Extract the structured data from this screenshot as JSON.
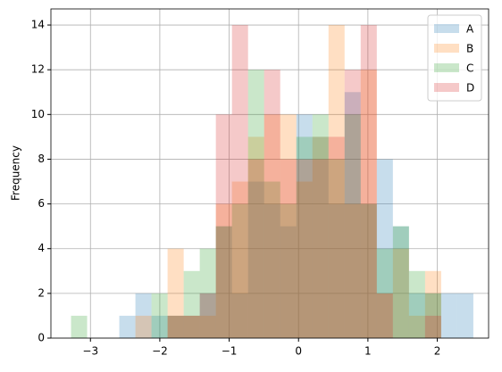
{
  "chart_data": {
    "type": "histogram",
    "ylabel": "Frequency",
    "bins": [
      -3.28,
      -3.048,
      -2.816,
      -2.584,
      -2.352,
      -2.12,
      -1.888,
      -1.656,
      -1.424,
      -1.192,
      -0.96,
      -0.728,
      -0.496,
      -0.264,
      -0.032,
      0.2,
      0.432,
      0.664,
      0.896,
      1.128,
      1.36,
      1.592,
      1.824,
      2.056,
      2.288,
      2.52
    ],
    "series": [
      {
        "name": "A",
        "color": "#1f77b4",
        "values": [
          0,
          0,
          0,
          1,
          2,
          1,
          1,
          1,
          2,
          5,
          2,
          7,
          6,
          5,
          10,
          9,
          6,
          11,
          6,
          8,
          5,
          2,
          2,
          2,
          2
        ]
      },
      {
        "name": "B",
        "color": "#ff7f0e",
        "values": [
          0,
          0,
          0,
          0,
          1,
          0,
          4,
          1,
          1,
          6,
          7,
          9,
          10,
          10,
          7,
          9,
          14,
          6,
          12,
          2,
          4,
          1,
          3,
          0,
          0
        ]
      },
      {
        "name": "C",
        "color": "#2ca02c",
        "values": [
          1,
          0,
          0,
          0,
          0,
          2,
          1,
          3,
          4,
          5,
          6,
          12,
          7,
          6,
          9,
          10,
          8,
          10,
          6,
          4,
          5,
          3,
          2,
          0,
          0
        ]
      },
      {
        "name": "D",
        "color": "#d62728",
        "values": [
          0,
          0,
          0,
          0,
          0,
          0,
          1,
          1,
          2,
          10,
          14,
          8,
          12,
          8,
          8,
          8,
          9,
          12,
          14,
          2,
          0,
          0,
          1,
          0,
          0
        ]
      }
    ],
    "opacity": 0.25,
    "xlim": [
      -3.57,
      2.74
    ],
    "ylim": [
      0,
      14.72
    ],
    "xticks": [
      {
        "value": -3,
        "label": "−3"
      },
      {
        "value": -2,
        "label": "−2"
      },
      {
        "value": -1,
        "label": "−1"
      },
      0,
      1,
      2
    ],
    "yticks": [
      0,
      2,
      4,
      6,
      8,
      10,
      12,
      14
    ],
    "grid": true,
    "legend": "upper right"
  }
}
